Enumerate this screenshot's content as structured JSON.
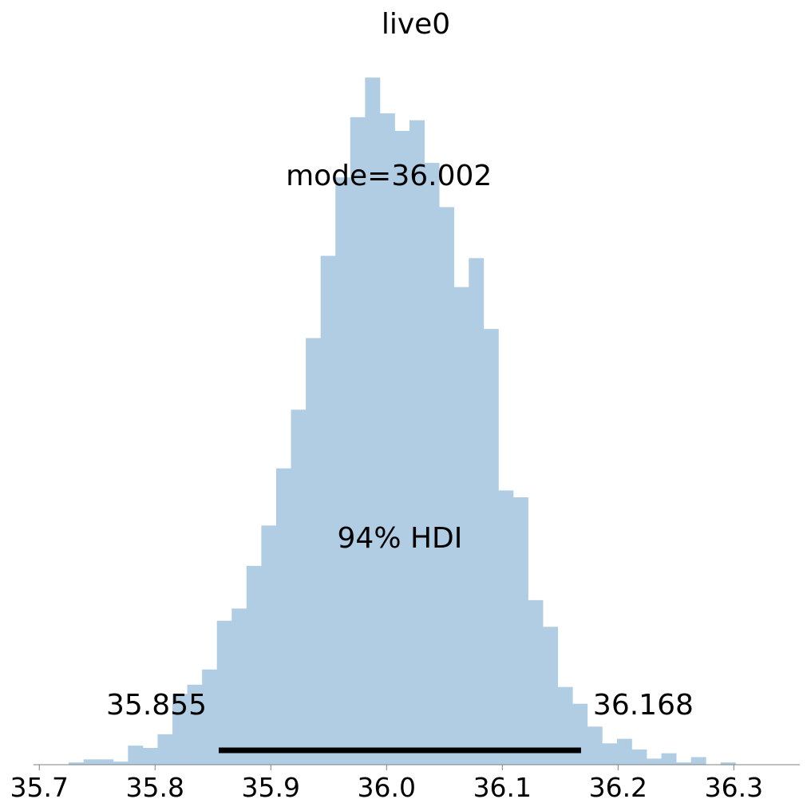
{
  "chart_data": {
    "type": "bar",
    "title": "live0",
    "xlabel": "",
    "ylabel": "",
    "xlim": [
      35.695,
      36.357
    ],
    "ylim": [
      0,
      92
    ],
    "grid": false,
    "bin_width": 0.0128,
    "bin_edges_start": 35.7254,
    "counts": [
      0.3,
      0.7,
      0.7,
      0.4,
      2.5,
      2.2,
      4.0,
      9.3,
      10.5,
      12.5,
      18.9,
      20.5,
      26.1,
      31.4,
      38.9,
      46.6,
      56.0,
      66.8,
      77.1,
      85.0,
      90.2,
      85.5,
      83.2,
      84.6,
      79.0,
      73.2,
      62.7,
      66.5,
      57.2,
      36.0,
      35.1,
      21.6,
      18.1,
      10.2,
      8.0,
      5.0,
      2.8,
      3.4,
      2.0,
      0.8,
      1.5,
      0.3,
      1.0,
      0.0,
      0.3
    ],
    "hdi": {
      "label": "94% HDI",
      "lower": 35.855,
      "upper": 36.168,
      "lower_label": "35.855",
      "upper_label": "36.168"
    },
    "mode": {
      "label": "mode=36.002",
      "value": 36.002
    },
    "x_ticks": [
      35.7,
      35.8,
      35.9,
      36.0,
      36.1,
      36.2,
      36.3
    ],
    "x_tick_labels": [
      "35.7",
      "35.8",
      "35.9",
      "36.0",
      "36.1",
      "36.2",
      "36.3"
    ],
    "colors": {
      "bars": "#b1cde3",
      "hdi_line": "#000000",
      "axis": "#808080"
    }
  }
}
